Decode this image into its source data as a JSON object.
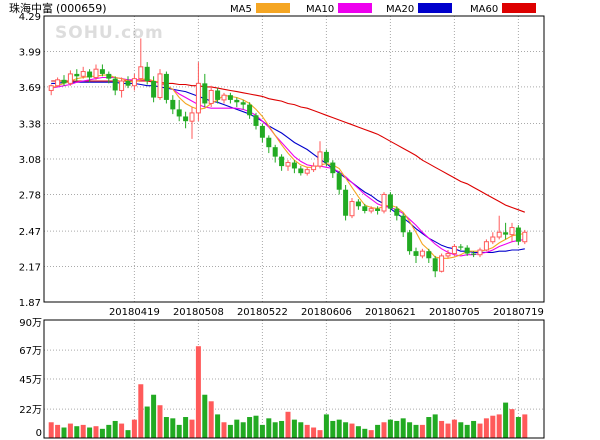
{
  "header": {
    "stock_name": "珠海中富",
    "stock_code": "(000659)",
    "watermark": "SOHU.com"
  },
  "legend": [
    {
      "name": "MA5",
      "color": "#f5a623"
    },
    {
      "name": "MA10",
      "color": "#ee00ee"
    },
    {
      "name": "MA20",
      "color": "#0000cc"
    },
    {
      "name": "MA60",
      "color": "#dd0000"
    }
  ],
  "colors": {
    "up": "#ff5a5a",
    "down": "#22aa22",
    "grid": "#aaaaaa",
    "frame": "#000000"
  },
  "chart_data": [
    {
      "type": "candlestick",
      "yticks": [
        "4.29",
        "3.99",
        "3.69",
        "3.38",
        "3.08",
        "2.78",
        "2.47",
        "2.17",
        "1.87"
      ],
      "ylim": [
        1.87,
        4.29
      ],
      "xtick_labels": [
        "20180419",
        "20180508",
        "20180522",
        "20180606",
        "20180621",
        "20180705",
        "20180719"
      ],
      "xtick_index": [
        13,
        23,
        33,
        43,
        53,
        63,
        73
      ],
      "grid": true,
      "legend_position": "top",
      "series_names": [
        "MA5",
        "MA10",
        "MA20",
        "MA60"
      ],
      "candles": [
        [
          3.66,
          3.7,
          3.62,
          3.71
        ],
        [
          3.7,
          3.75,
          3.69,
          3.77
        ],
        [
          3.75,
          3.72,
          3.7,
          3.79
        ],
        [
          3.72,
          3.8,
          3.7,
          3.83
        ],
        [
          3.8,
          3.78,
          3.74,
          3.84
        ],
        [
          3.78,
          3.82,
          3.76,
          3.86
        ],
        [
          3.82,
          3.77,
          3.73,
          3.84
        ],
        [
          3.77,
          3.84,
          3.75,
          3.88
        ],
        [
          3.84,
          3.8,
          3.78,
          3.88
        ],
        [
          3.8,
          3.76,
          3.72,
          3.82
        ],
        [
          3.76,
          3.66,
          3.62,
          3.78
        ],
        [
          3.66,
          3.74,
          3.6,
          3.77
        ],
        [
          3.74,
          3.7,
          3.68,
          3.78
        ],
        [
          3.7,
          3.76,
          3.66,
          3.8
        ],
        [
          3.76,
          3.86,
          3.74,
          4.1
        ],
        [
          3.86,
          3.74,
          3.71,
          3.9
        ],
        [
          3.74,
          3.6,
          3.56,
          3.78
        ],
        [
          3.6,
          3.8,
          3.58,
          3.84
        ],
        [
          3.8,
          3.58,
          3.55,
          3.82
        ],
        [
          3.58,
          3.5,
          3.46,
          3.62
        ],
        [
          3.5,
          3.44,
          3.4,
          3.58
        ],
        [
          3.44,
          3.4,
          3.34,
          3.48
        ],
        [
          3.4,
          3.47,
          3.25,
          3.52
        ],
        [
          3.47,
          3.72,
          3.4,
          3.9
        ],
        [
          3.72,
          3.55,
          3.52,
          3.8
        ],
        [
          3.55,
          3.66,
          3.52,
          3.7
        ],
        [
          3.66,
          3.58,
          3.55,
          3.68
        ],
        [
          3.58,
          3.62,
          3.55,
          3.64
        ],
        [
          3.62,
          3.58,
          3.55,
          3.64
        ],
        [
          3.58,
          3.56,
          3.52,
          3.6
        ],
        [
          3.56,
          3.54,
          3.5,
          3.58
        ],
        [
          3.54,
          3.45,
          3.42,
          3.56
        ],
        [
          3.45,
          3.36,
          3.33,
          3.47
        ],
        [
          3.36,
          3.26,
          3.22,
          3.38
        ],
        [
          3.26,
          3.18,
          3.13,
          3.28
        ],
        [
          3.18,
          3.1,
          3.05,
          3.2
        ],
        [
          3.1,
          3.02,
          2.98,
          3.12
        ],
        [
          3.02,
          3.05,
          2.98,
          3.07
        ],
        [
          3.05,
          3.0,
          2.96,
          3.07
        ],
        [
          3.0,
          2.96,
          2.94,
          3.02
        ],
        [
          2.96,
          2.99,
          2.94,
          3.01
        ],
        [
          2.99,
          3.02,
          2.97,
          3.05
        ],
        [
          3.02,
          3.14,
          3.0,
          3.23
        ],
        [
          3.14,
          3.05,
          3.02,
          3.16
        ],
        [
          3.05,
          2.96,
          2.92,
          3.07
        ],
        [
          2.96,
          2.82,
          2.78,
          2.98
        ],
        [
          2.82,
          2.6,
          2.56,
          2.86
        ],
        [
          2.6,
          2.72,
          2.58,
          2.75
        ],
        [
          2.72,
          2.68,
          2.65,
          2.74
        ],
        [
          2.68,
          2.64,
          2.62,
          2.7
        ],
        [
          2.64,
          2.66,
          2.62,
          2.68
        ],
        [
          2.66,
          2.64,
          2.61,
          2.68
        ],
        [
          2.64,
          2.78,
          2.62,
          2.8
        ],
        [
          2.78,
          2.66,
          2.63,
          2.8
        ],
        [
          2.66,
          2.6,
          2.56,
          2.68
        ],
        [
          2.6,
          2.46,
          2.42,
          2.62
        ],
        [
          2.46,
          2.3,
          2.27,
          2.48
        ],
        [
          2.3,
          2.26,
          2.2,
          2.33
        ],
        [
          2.26,
          2.3,
          2.24,
          2.32
        ],
        [
          2.3,
          2.24,
          2.2,
          2.32
        ],
        [
          2.24,
          2.13,
          2.08,
          2.26
        ],
        [
          2.13,
          2.26,
          2.12,
          2.28
        ],
        [
          2.26,
          2.28,
          2.24,
          2.31
        ],
        [
          2.28,
          2.34,
          2.26,
          2.36
        ],
        [
          2.34,
          2.33,
          2.31,
          2.36
        ],
        [
          2.33,
          2.28,
          2.26,
          2.35
        ],
        [
          2.28,
          2.27,
          2.25,
          2.3
        ],
        [
          2.27,
          2.31,
          2.25,
          2.33
        ],
        [
          2.31,
          2.38,
          2.3,
          2.4
        ],
        [
          2.38,
          2.42,
          2.36,
          2.46
        ],
        [
          2.42,
          2.46,
          2.4,
          2.6
        ],
        [
          2.46,
          2.44,
          2.4,
          2.54
        ],
        [
          2.44,
          2.5,
          2.38,
          2.54
        ],
        [
          2.5,
          2.38,
          2.35,
          2.52
        ],
        [
          2.38,
          2.46,
          2.36,
          2.48
        ]
      ],
      "ma5": [
        3.68,
        3.7,
        3.72,
        3.74,
        3.76,
        3.77,
        3.78,
        3.78,
        3.79,
        3.79,
        3.77,
        3.76,
        3.74,
        3.73,
        3.75,
        3.76,
        3.74,
        3.73,
        3.7,
        3.67,
        3.6,
        3.55,
        3.52,
        3.5,
        3.51,
        3.55,
        3.58,
        3.62,
        3.61,
        3.6,
        3.58,
        3.55,
        3.5,
        3.44,
        3.36,
        3.28,
        3.2,
        3.13,
        3.07,
        3.03,
        3.01,
        3.01,
        3.03,
        3.04,
        3.03,
        3.0,
        2.92,
        2.84,
        2.76,
        2.69,
        2.67,
        2.66,
        2.68,
        2.69,
        2.67,
        2.63,
        2.55,
        2.46,
        2.36,
        2.31,
        2.25,
        2.24,
        2.24,
        2.25,
        2.27,
        2.3,
        2.3,
        2.3,
        2.31,
        2.33,
        2.37,
        2.4,
        2.43,
        2.44,
        2.45
      ],
      "ma10": [
        3.68,
        3.69,
        3.7,
        3.71,
        3.73,
        3.74,
        3.75,
        3.76,
        3.77,
        3.77,
        3.77,
        3.76,
        3.75,
        3.75,
        3.75,
        3.75,
        3.74,
        3.72,
        3.7,
        3.67,
        3.63,
        3.6,
        3.57,
        3.54,
        3.52,
        3.51,
        3.51,
        3.51,
        3.51,
        3.51,
        3.5,
        3.48,
        3.45,
        3.4,
        3.35,
        3.28,
        3.22,
        3.16,
        3.1,
        3.06,
        3.03,
        3.02,
        3.02,
        3.01,
        3.0,
        2.97,
        2.93,
        2.88,
        2.83,
        2.78,
        2.74,
        2.7,
        2.68,
        2.67,
        2.65,
        2.62,
        2.57,
        2.52,
        2.46,
        2.41,
        2.36,
        2.32,
        2.29,
        2.27,
        2.26,
        2.27,
        2.27,
        2.28,
        2.29,
        2.31,
        2.34,
        2.36,
        2.38,
        2.39,
        2.4
      ],
      "ma20": [
        3.72,
        3.72,
        3.73,
        3.73,
        3.73,
        3.73,
        3.73,
        3.73,
        3.73,
        3.73,
        3.73,
        3.72,
        3.72,
        3.72,
        3.71,
        3.7,
        3.7,
        3.69,
        3.68,
        3.67,
        3.66,
        3.65,
        3.63,
        3.61,
        3.59,
        3.57,
        3.56,
        3.54,
        3.52,
        3.5,
        3.48,
        3.46,
        3.43,
        3.4,
        3.36,
        3.33,
        3.3,
        3.26,
        3.22,
        3.19,
        3.16,
        3.12,
        3.08,
        3.04,
        3.0,
        2.96,
        2.92,
        2.88,
        2.84,
        2.8,
        2.77,
        2.73,
        2.7,
        2.66,
        2.62,
        2.58,
        2.54,
        2.49,
        2.45,
        2.41,
        2.38,
        2.35,
        2.33,
        2.32,
        2.3,
        2.3,
        2.29,
        2.29,
        2.29,
        2.29,
        2.3,
        2.3,
        2.31,
        2.31,
        2.32
      ],
      "ma60": [
        3.74,
        3.74,
        3.74,
        3.74,
        3.74,
        3.74,
        3.74,
        3.74,
        3.74,
        3.74,
        3.74,
        3.74,
        3.74,
        3.74,
        3.74,
        3.74,
        3.73,
        3.73,
        3.72,
        3.72,
        3.71,
        3.71,
        3.7,
        3.7,
        3.69,
        3.69,
        3.68,
        3.67,
        3.66,
        3.65,
        3.64,
        3.63,
        3.62,
        3.61,
        3.59,
        3.58,
        3.57,
        3.55,
        3.54,
        3.52,
        3.51,
        3.49,
        3.47,
        3.45,
        3.43,
        3.41,
        3.39,
        3.37,
        3.35,
        3.33,
        3.31,
        3.29,
        3.26,
        3.23,
        3.2,
        3.17,
        3.14,
        3.11,
        3.07,
        3.04,
        3.01,
        2.98,
        2.95,
        2.92,
        2.89,
        2.87,
        2.84,
        2.81,
        2.78,
        2.75,
        2.72,
        2.69,
        2.67,
        2.65,
        2.63
      ]
    },
    {
      "type": "bar",
      "yticks": [
        "90万",
        "67万",
        "45万",
        "22万",
        "0"
      ],
      "ylim": [
        0,
        90
      ],
      "unit": "万",
      "volume": [
        12,
        10,
        8,
        11,
        9,
        10,
        8,
        9,
        7,
        10,
        13,
        11,
        6,
        14,
        41,
        24,
        33,
        25,
        16,
        15,
        10,
        16,
        14,
        70,
        33,
        28,
        18,
        12,
        10,
        14,
        12,
        16,
        17,
        10,
        15,
        12,
        13,
        20,
        14,
        12,
        10,
        8,
        6,
        18,
        13,
        14,
        12,
        11,
        9,
        7,
        6,
        10,
        12,
        14,
        13,
        15,
        12,
        10,
        10,
        16,
        18,
        13,
        11,
        14,
        12,
        10,
        13,
        11,
        15,
        17,
        18,
        27,
        22,
        16,
        18
      ]
    }
  ]
}
